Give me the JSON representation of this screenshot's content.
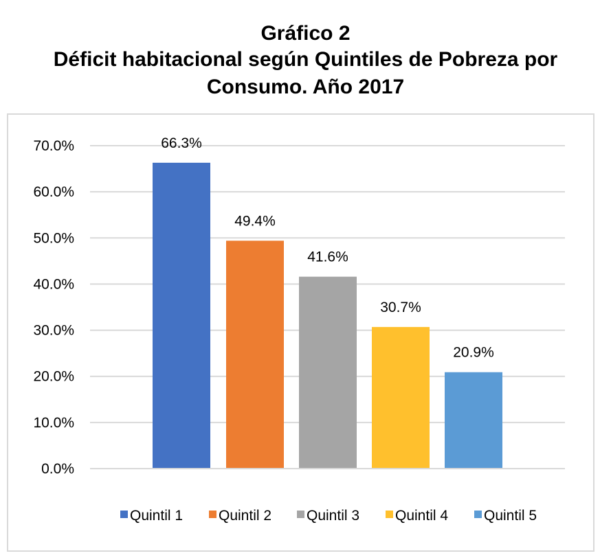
{
  "chart_data": {
    "type": "bar",
    "title_lines": [
      "Gráfico 2",
      "Déficit habitacional según Quintiles de Pobreza por",
      "Consumo. Año 2017"
    ],
    "categories": [
      "Quintil 1",
      "Quintil 2",
      "Quintil 3",
      "Quintil 4",
      "Quintil 5"
    ],
    "values": [
      66.3,
      49.4,
      41.6,
      30.7,
      20.9
    ],
    "data_labels": [
      "66.3%",
      "49.4%",
      "41.6%",
      "30.7%",
      "20.9%"
    ],
    "colors": [
      "#4472C4",
      "#ED7D31",
      "#A5A5A5",
      "#FFC02D",
      "#5B9BD5"
    ],
    "ylim": [
      0,
      70
    ],
    "yticks": [
      0,
      10,
      20,
      30,
      40,
      50,
      60,
      70
    ],
    "ytick_labels": [
      "0.0%",
      "10.0%",
      "20.0%",
      "30.0%",
      "40.0%",
      "50.0%",
      "60.0%",
      "70.0%"
    ],
    "xlabel": "",
    "ylabel": "",
    "grid": true,
    "legend": "bottom"
  }
}
